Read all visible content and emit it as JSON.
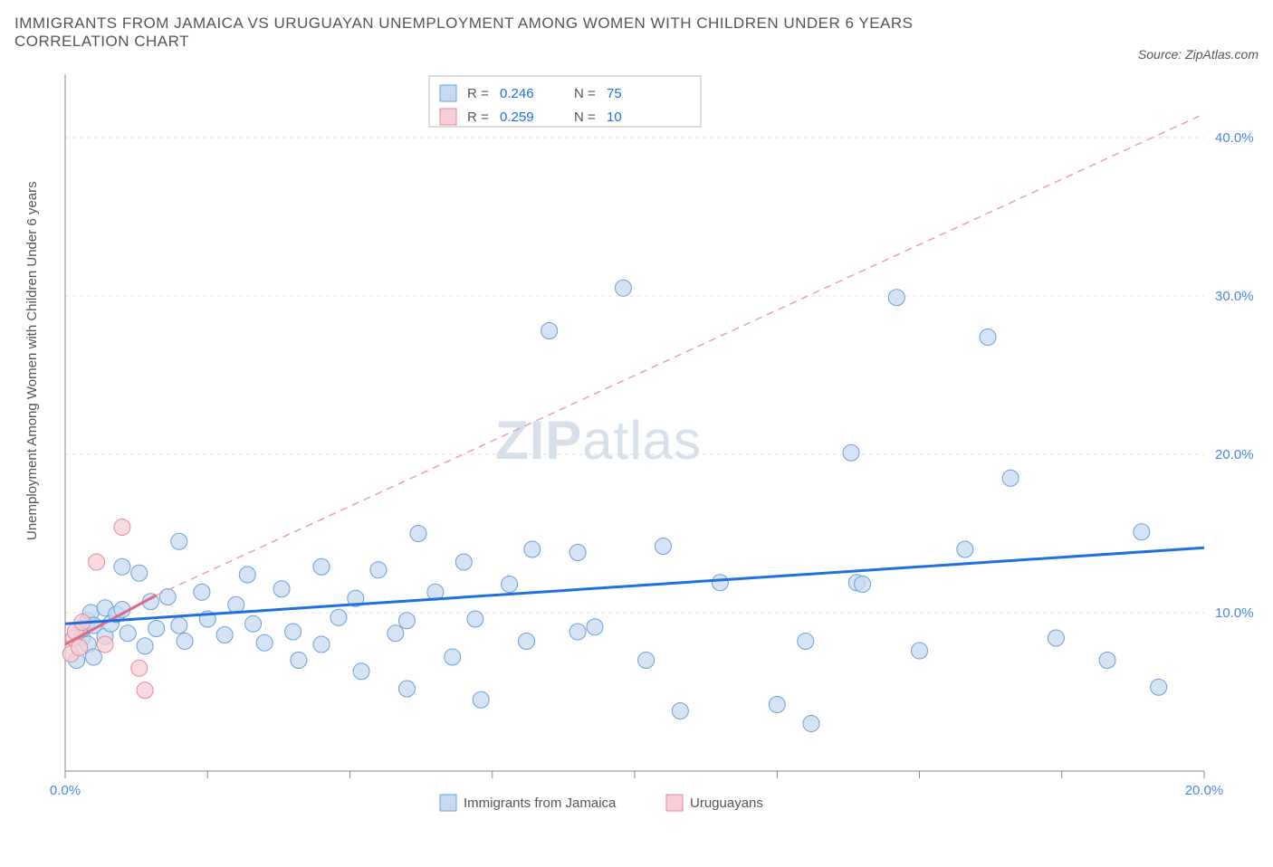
{
  "title": "IMMIGRANTS FROM JAMAICA VS URUGUAYAN UNEMPLOYMENT AMONG WOMEN WITH CHILDREN UNDER 6 YEARS CORRELATION CHART",
  "source": "Source: ZipAtlas.com",
  "ylabel": "Unemployment Among Women with Children Under 6 years",
  "watermark_a": "ZIP",
  "watermark_b": "atlas",
  "chart": {
    "type": "scatter",
    "background_color": "#ffffff",
    "grid_color": "#e0e0e0",
    "axis_color": "#888888",
    "xlim": [
      0,
      20
    ],
    "ylim": [
      0,
      44
    ],
    "xticks": [
      0,
      2.5,
      5,
      7.5,
      10,
      12.5,
      15,
      17.5,
      20
    ],
    "xtick_labels": {
      "0": "0.0%",
      "20": "20.0%"
    },
    "yticks": [
      10,
      20,
      30,
      40
    ],
    "ytick_labels": {
      "10": "10.0%",
      "20": "20.0%",
      "30": "30.0%",
      "40": "40.0%"
    },
    "marker_radius": 9,
    "series": [
      {
        "name": "Immigrants from Jamaica",
        "color_fill": "#c6dbf2",
        "color_stroke": "#6d9fd8",
        "trend_color": "#1f6fe0",
        "trend_style": "solid",
        "R": 0.246,
        "N": 75,
        "trend": {
          "x1": 0,
          "y1": 9.3,
          "x2": 20,
          "y2": 14.1
        },
        "points": [
          [
            0.2,
            7.0
          ],
          [
            0.3,
            8.4
          ],
          [
            0.3,
            9.0
          ],
          [
            0.4,
            8.0
          ],
          [
            0.4,
            9.5
          ],
          [
            0.45,
            10.0
          ],
          [
            0.5,
            9.2
          ],
          [
            0.5,
            7.2
          ],
          [
            0.7,
            10.3
          ],
          [
            0.7,
            8.5
          ],
          [
            0.8,
            9.3
          ],
          [
            0.9,
            9.9
          ],
          [
            1.0,
            12.9
          ],
          [
            1.0,
            10.2
          ],
          [
            1.1,
            8.7
          ],
          [
            1.3,
            12.5
          ],
          [
            1.4,
            7.9
          ],
          [
            1.5,
            10.7
          ],
          [
            1.6,
            9.0
          ],
          [
            1.8,
            11.0
          ],
          [
            2.0,
            14.5
          ],
          [
            2.0,
            9.2
          ],
          [
            2.1,
            8.2
          ],
          [
            2.4,
            11.3
          ],
          [
            2.5,
            9.6
          ],
          [
            2.8,
            8.6
          ],
          [
            3.0,
            10.5
          ],
          [
            3.2,
            12.4
          ],
          [
            3.3,
            9.3
          ],
          [
            3.5,
            8.1
          ],
          [
            3.8,
            11.5
          ],
          [
            4.0,
            8.8
          ],
          [
            4.1,
            7.0
          ],
          [
            4.5,
            8.0
          ],
          [
            4.5,
            12.9
          ],
          [
            4.8,
            9.7
          ],
          [
            5.1,
            10.9
          ],
          [
            5.2,
            6.3
          ],
          [
            5.5,
            12.7
          ],
          [
            5.8,
            8.7
          ],
          [
            6.0,
            5.2
          ],
          [
            6.2,
            15.0
          ],
          [
            6.5,
            11.3
          ],
          [
            6.8,
            7.2
          ],
          [
            7.0,
            13.2
          ],
          [
            7.2,
            9.6
          ],
          [
            7.3,
            4.5
          ],
          [
            7.8,
            11.8
          ],
          [
            8.1,
            8.2
          ],
          [
            8.2,
            14.0
          ],
          [
            8.5,
            27.8
          ],
          [
            9.0,
            13.8
          ],
          [
            9.0,
            8.8
          ],
          [
            9.3,
            9.1
          ],
          [
            9.8,
            30.5
          ],
          [
            10.2,
            7.0
          ],
          [
            10.5,
            14.2
          ],
          [
            10.8,
            3.8
          ],
          [
            11.5,
            11.9
          ],
          [
            12.5,
            4.2
          ],
          [
            13.0,
            8.2
          ],
          [
            13.1,
            3.0
          ],
          [
            13.8,
            20.1
          ],
          [
            13.9,
            11.9
          ],
          [
            14.6,
            29.9
          ],
          [
            15.0,
            7.6
          ],
          [
            15.8,
            14.0
          ],
          [
            16.2,
            27.4
          ],
          [
            16.6,
            18.5
          ],
          [
            17.4,
            8.4
          ],
          [
            18.3,
            7.0
          ],
          [
            18.9,
            15.1
          ],
          [
            19.2,
            5.3
          ],
          [
            14.0,
            11.8
          ],
          [
            6.0,
            9.5
          ]
        ]
      },
      {
        "name": "Uruguayans",
        "color_fill": "#f7cdd6",
        "color_stroke": "#e48aa0",
        "trend_color": "#e06a88",
        "trend_style": "solid_then_dashed",
        "R": 0.259,
        "N": 10,
        "trend_solid": {
          "x1": 0,
          "y1": 8.0,
          "x2": 1.6,
          "y2": 11.1
        },
        "trend_dash": {
          "x1": 1.6,
          "y1": 11.1,
          "x2": 20,
          "y2": 41.5
        },
        "points": [
          [
            0.1,
            7.4
          ],
          [
            0.15,
            8.4
          ],
          [
            0.18,
            8.8
          ],
          [
            0.25,
            7.8
          ],
          [
            0.3,
            9.4
          ],
          [
            0.55,
            13.2
          ],
          [
            0.7,
            8.0
          ],
          [
            1.0,
            15.4
          ],
          [
            1.4,
            5.1
          ],
          [
            1.3,
            6.5
          ]
        ]
      }
    ],
    "legend_top": [
      {
        "swatch": "blue",
        "R_label": "R =",
        "R": "0.246",
        "N_label": "N =",
        "N": "75"
      },
      {
        "swatch": "pink",
        "R_label": "R =",
        "R": "0.259",
        "N_label": "N =",
        "N": "10"
      }
    ],
    "legend_bottom": [
      {
        "swatch": "blue",
        "label": "Immigrants from Jamaica"
      },
      {
        "swatch": "pink",
        "label": "Uruguayans"
      }
    ]
  }
}
